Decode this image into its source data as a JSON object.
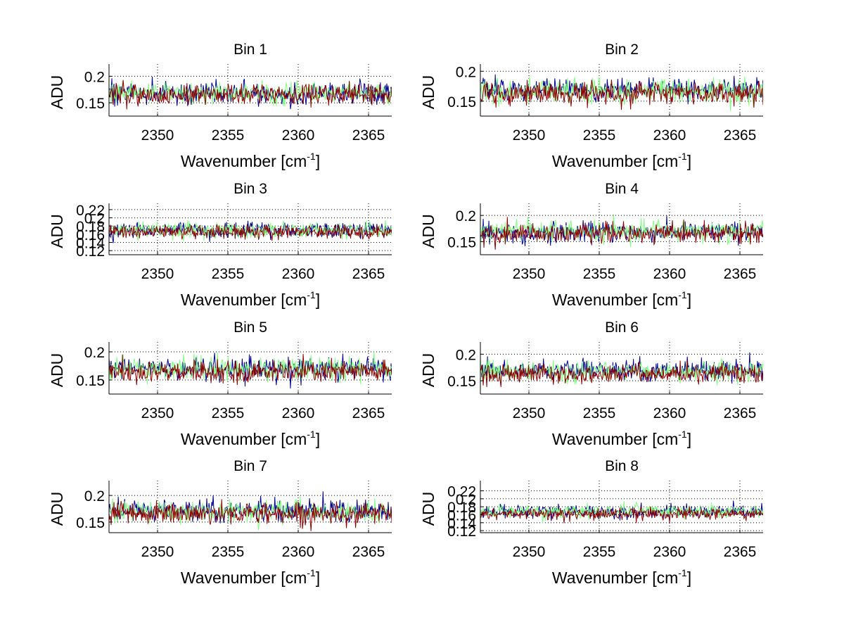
{
  "figure": {
    "background": "#ffffff"
  },
  "chart_data": [
    {
      "type": "line",
      "title": "Bin 1",
      "xlabel": "Wavenumber [cm",
      "xlabel_sup": "-1",
      "xlabel_end": "]",
      "ylabel": "ADU",
      "xlim": [
        2346.55,
        2366.65
      ],
      "ylim": [
        0.125,
        0.215
      ],
      "xticks": [
        2350,
        2355,
        2360,
        2365
      ],
      "xtick_labels": [
        "2350",
        "2355",
        "2360",
        "2365"
      ],
      "yticks": [
        0.15,
        0.2
      ],
      "ytick_labels": [
        "0.15",
        "0.2"
      ],
      "grid": true,
      "series": [
        {
          "name": "blue",
          "color": "#00008f",
          "mean": 0.168,
          "noise": 0.014,
          "points": 400,
          "seed": 11
        },
        {
          "name": "green",
          "color": "#80ff80",
          "mean": 0.17,
          "noise": 0.013,
          "points": 400,
          "seed": 12
        },
        {
          "name": "red",
          "color": "#8f0000",
          "mean": 0.165,
          "noise": 0.013,
          "points": 400,
          "seed": 13
        }
      ]
    },
    {
      "type": "line",
      "title": "Bin 2",
      "xlabel": "Wavenumber [cm",
      "xlabel_sup": "-1",
      "xlabel_end": "]",
      "ylabel": "ADU",
      "xlim": [
        2346.55,
        2366.65
      ],
      "ylim": [
        0.125,
        0.205
      ],
      "xticks": [
        2350,
        2355,
        2360,
        2365
      ],
      "xtick_labels": [
        "2350",
        "2355",
        "2360",
        "2365"
      ],
      "yticks": [
        0.15,
        0.2
      ],
      "ytick_labels": [
        "0.15",
        "0.2"
      ],
      "grid": true,
      "series": [
        {
          "name": "blue",
          "color": "#00008f",
          "mean": 0.17,
          "noise": 0.013,
          "points": 400,
          "seed": 21
        },
        {
          "name": "green",
          "color": "#80ff80",
          "mean": 0.167,
          "noise": 0.013,
          "points": 400,
          "seed": 22
        },
        {
          "name": "red",
          "color": "#8f0000",
          "mean": 0.163,
          "noise": 0.013,
          "points": 400,
          "seed": 23
        }
      ]
    },
    {
      "type": "line",
      "title": "Bin 3",
      "xlabel": "Wavenumber [cm",
      "xlabel_sup": "-1",
      "xlabel_end": "]",
      "ylabel": "ADU",
      "xlim": [
        2346.55,
        2366.65
      ],
      "ylim": [
        0.11,
        0.225
      ],
      "xticks": [
        2350,
        2355,
        2360,
        2365
      ],
      "xtick_labels": [
        "2350",
        "2355",
        "2360",
        "2365"
      ],
      "yticks": [
        0.12,
        0.14,
        0.16,
        0.18,
        0.2,
        0.22
      ],
      "ytick_labels": [
        "0.12",
        "0.14",
        "0.16",
        "0.18",
        "0.2",
        "0.22"
      ],
      "grid": true,
      "series": [
        {
          "name": "blue",
          "color": "#00008f",
          "mean": 0.17,
          "noise": 0.012,
          "points": 400,
          "seed": 31
        },
        {
          "name": "green",
          "color": "#80ff80",
          "mean": 0.17,
          "noise": 0.012,
          "points": 400,
          "seed": 32
        },
        {
          "name": "red",
          "color": "#8f0000",
          "mean": 0.165,
          "noise": 0.011,
          "points": 400,
          "seed": 33
        }
      ]
    },
    {
      "type": "line",
      "title": "Bin 4",
      "xlabel": "Wavenumber [cm",
      "xlabel_sup": "-1",
      "xlabel_end": "]",
      "ylabel": "ADU",
      "xlim": [
        2346.55,
        2366.65
      ],
      "ylim": [
        0.125,
        0.215
      ],
      "xticks": [
        2350,
        2355,
        2360,
        2365
      ],
      "xtick_labels": [
        "2350",
        "2355",
        "2360",
        "2365"
      ],
      "yticks": [
        0.15,
        0.2
      ],
      "ytick_labels": [
        "0.15",
        "0.2"
      ],
      "grid": true,
      "series": [
        {
          "name": "blue",
          "color": "#00008f",
          "mean": 0.168,
          "noise": 0.013,
          "points": 400,
          "seed": 41
        },
        {
          "name": "green",
          "color": "#80ff80",
          "mean": 0.17,
          "noise": 0.013,
          "points": 400,
          "seed": 42
        },
        {
          "name": "red",
          "color": "#8f0000",
          "mean": 0.165,
          "noise": 0.013,
          "points": 400,
          "seed": 43
        }
      ]
    },
    {
      "type": "line",
      "title": "Bin 5",
      "xlabel": "Wavenumber [cm",
      "xlabel_sup": "-1",
      "xlabel_end": "]",
      "ylabel": "ADU",
      "xlim": [
        2346.55,
        2366.65
      ],
      "ylim": [
        0.125,
        0.21
      ],
      "xticks": [
        2350,
        2355,
        2360,
        2365
      ],
      "xtick_labels": [
        "2350",
        "2355",
        "2360",
        "2365"
      ],
      "yticks": [
        0.15,
        0.2
      ],
      "ytick_labels": [
        "0.15",
        "0.2"
      ],
      "grid": true,
      "series": [
        {
          "name": "blue",
          "color": "#00008f",
          "mean": 0.17,
          "noise": 0.013,
          "points": 400,
          "seed": 51
        },
        {
          "name": "green",
          "color": "#80ff80",
          "mean": 0.17,
          "noise": 0.014,
          "points": 400,
          "seed": 52
        },
        {
          "name": "red",
          "color": "#8f0000",
          "mean": 0.164,
          "noise": 0.013,
          "points": 400,
          "seed": 53
        }
      ]
    },
    {
      "type": "line",
      "title": "Bin 6",
      "xlabel": "Wavenumber [cm",
      "xlabel_sup": "-1",
      "xlabel_end": "]",
      "ylabel": "ADU",
      "xlim": [
        2346.55,
        2366.65
      ],
      "ylim": [
        0.125,
        0.215
      ],
      "xticks": [
        2350,
        2355,
        2360,
        2365
      ],
      "xtick_labels": [
        "2350",
        "2355",
        "2360",
        "2365"
      ],
      "yticks": [
        0.15,
        0.2
      ],
      "ytick_labels": [
        "0.15",
        "0.2"
      ],
      "grid": true,
      "series": [
        {
          "name": "blue",
          "color": "#00008f",
          "mean": 0.17,
          "noise": 0.013,
          "points": 400,
          "seed": 61
        },
        {
          "name": "green",
          "color": "#80ff80",
          "mean": 0.168,
          "noise": 0.012,
          "points": 400,
          "seed": 62
        },
        {
          "name": "red",
          "color": "#8f0000",
          "mean": 0.163,
          "noise": 0.012,
          "points": 400,
          "seed": 63
        }
      ]
    },
    {
      "type": "line",
      "title": "Bin 7",
      "xlabel": "Wavenumber [cm",
      "xlabel_sup": "-1",
      "xlabel_end": "]",
      "ylabel": "ADU",
      "xlim": [
        2346.55,
        2366.65
      ],
      "ylim": [
        0.13,
        0.22
      ],
      "xticks": [
        2350,
        2355,
        2360,
        2365
      ],
      "xtick_labels": [
        "2350",
        "2355",
        "2360",
        "2365"
      ],
      "yticks": [
        0.15,
        0.2
      ],
      "ytick_labels": [
        "0.15",
        "0.2"
      ],
      "grid": true,
      "series": [
        {
          "name": "blue",
          "color": "#00008f",
          "mean": 0.172,
          "noise": 0.014,
          "points": 400,
          "seed": 71
        },
        {
          "name": "green",
          "color": "#80ff80",
          "mean": 0.17,
          "noise": 0.013,
          "points": 400,
          "seed": 72
        },
        {
          "name": "red",
          "color": "#8f0000",
          "mean": 0.166,
          "noise": 0.013,
          "points": 400,
          "seed": 73
        }
      ]
    },
    {
      "type": "line",
      "title": "Bin 8",
      "xlabel": "Wavenumber [cm",
      "xlabel_sup": "-1",
      "xlabel_end": "]",
      "ylabel": "ADU",
      "xlim": [
        2346.55,
        2366.65
      ],
      "ylim": [
        0.115,
        0.235
      ],
      "xticks": [
        2350,
        2355,
        2360,
        2365
      ],
      "xtick_labels": [
        "2350",
        "2355",
        "2360",
        "2365"
      ],
      "yticks": [
        0.12,
        0.14,
        0.16,
        0.18,
        0.2,
        0.22
      ],
      "ytick_labels": [
        "0.12",
        "0.14",
        "0.16",
        "0.18",
        "0.2",
        "0.22"
      ],
      "grid": true,
      "series": [
        {
          "name": "blue",
          "color": "#00008f",
          "mean": 0.168,
          "noise": 0.011,
          "points": 400,
          "seed": 81
        },
        {
          "name": "green",
          "color": "#80ff80",
          "mean": 0.168,
          "noise": 0.011,
          "points": 400,
          "seed": 82
        },
        {
          "name": "red",
          "color": "#8f0000",
          "mean": 0.162,
          "noise": 0.01,
          "points": 400,
          "seed": 83
        }
      ]
    }
  ]
}
